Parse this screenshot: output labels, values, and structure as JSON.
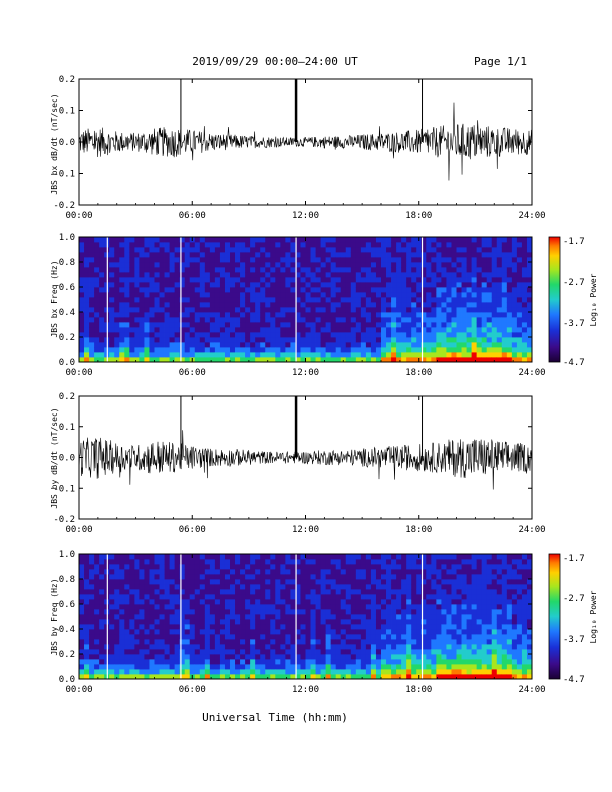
{
  "header": {
    "title": "2019/09/29  00:00–24:00 UT",
    "page": "Page 1/1"
  },
  "colors": {
    "trace": "#000000",
    "colormap": [
      "#1a0033",
      "#3b0a8a",
      "#1a2fd6",
      "#1f78ff",
      "#22cccc",
      "#22d86a",
      "#a8e61e",
      "#ffd000",
      "#ff7a00",
      "#ee0000"
    ]
  },
  "chart_data": [
    {
      "type": "line",
      "ylabel": "JBS bx dB/dt (nT/sec)",
      "ylim": [
        -0.2,
        0.2
      ],
      "yticks": [
        "0.2",
        "0.1",
        "0.0",
        "-0.1",
        "-0.2"
      ],
      "xlim": [
        0,
        24
      ],
      "xticks": [
        "00:00",
        "06:00",
        "12:00",
        "18:00",
        "24:00"
      ],
      "description_series": "dB/dt bx",
      "envelope": {
        "x": [
          0,
          1,
          2,
          3,
          4,
          5,
          6,
          7,
          8,
          9,
          10,
          11,
          12,
          13,
          14,
          15,
          16,
          17,
          18,
          19,
          20,
          21,
          22,
          23,
          24
        ],
        "amplitude": [
          0.04,
          0.05,
          0.035,
          0.03,
          0.045,
          0.05,
          0.04,
          0.03,
          0.025,
          0.02,
          0.018,
          0.015,
          0.015,
          0.02,
          0.02,
          0.025,
          0.03,
          0.035,
          0.04,
          0.05,
          0.06,
          0.06,
          0.05,
          0.045,
          0.04
        ]
      },
      "spikes": [
        {
          "x": 5.4,
          "y": 0.2
        },
        {
          "x": 11.5,
          "y": 0.2
        },
        {
          "x": 18.2,
          "y": 0.2
        }
      ]
    },
    {
      "type": "heatmap",
      "ylabel": "JBS bx Freq (Hz)",
      "ylim": [
        0.0,
        1.0
      ],
      "yticks": [
        "1.0",
        "0.8",
        "0.6",
        "0.4",
        "0.2",
        "0.0"
      ],
      "xlim": [
        0,
        24
      ],
      "xticks": [
        "00:00",
        "06:00",
        "12:00",
        "18:00",
        "24:00"
      ],
      "colorbar_label": "Log₁₀ Power",
      "colorbar_ticks": [
        "-1.7",
        "-2.7",
        "-3.7",
        "-4.7"
      ],
      "zlim": [
        -4.7,
        -1.7
      ],
      "gaps": [
        1.5,
        5.4,
        11.5,
        18.2
      ]
    },
    {
      "type": "line",
      "ylabel": "JBS by dB/dt (nT/sec)",
      "ylim": [
        -0.2,
        0.2
      ],
      "yticks": [
        "0.2",
        "0.1",
        "0.0",
        "-0.1",
        "-0.2"
      ],
      "xlim": [
        0,
        24
      ],
      "xticks": [
        "00:00",
        "06:00",
        "12:00",
        "18:00",
        "24:00"
      ],
      "description_series": "dB/dt by",
      "envelope": {
        "x": [
          0,
          1,
          2,
          3,
          4,
          5,
          6,
          7,
          8,
          9,
          10,
          11,
          12,
          13,
          14,
          15,
          16,
          17,
          18,
          19,
          20,
          21,
          22,
          23,
          24
        ],
        "amplitude": [
          0.06,
          0.07,
          0.05,
          0.04,
          0.06,
          0.05,
          0.04,
          0.03,
          0.03,
          0.025,
          0.02,
          0.02,
          0.02,
          0.025,
          0.025,
          0.03,
          0.035,
          0.04,
          0.045,
          0.05,
          0.065,
          0.07,
          0.06,
          0.05,
          0.045
        ]
      },
      "spikes": [
        {
          "x": 5.4,
          "y": 0.2
        },
        {
          "x": 11.5,
          "y": 0.2
        },
        {
          "x": 18.2,
          "y": 0.2
        }
      ]
    },
    {
      "type": "heatmap",
      "ylabel": "JBS by Freq (Hz)",
      "ylim": [
        0.0,
        1.0
      ],
      "yticks": [
        "1.0",
        "0.8",
        "0.6",
        "0.4",
        "0.2",
        "0.0"
      ],
      "xlim": [
        0,
        24
      ],
      "xticks": [
        "00:00",
        "06:00",
        "12:00",
        "18:00",
        "24:00"
      ],
      "colorbar_label": "Log₁₀ Power",
      "colorbar_ticks": [
        "-1.7",
        "-2.7",
        "-3.7",
        "-4.7"
      ],
      "zlim": [
        -4.7,
        -1.7
      ],
      "gaps": [
        1.5,
        5.4,
        11.5,
        18.2
      ]
    }
  ],
  "xlabel": "Universal Time (hh:mm)"
}
